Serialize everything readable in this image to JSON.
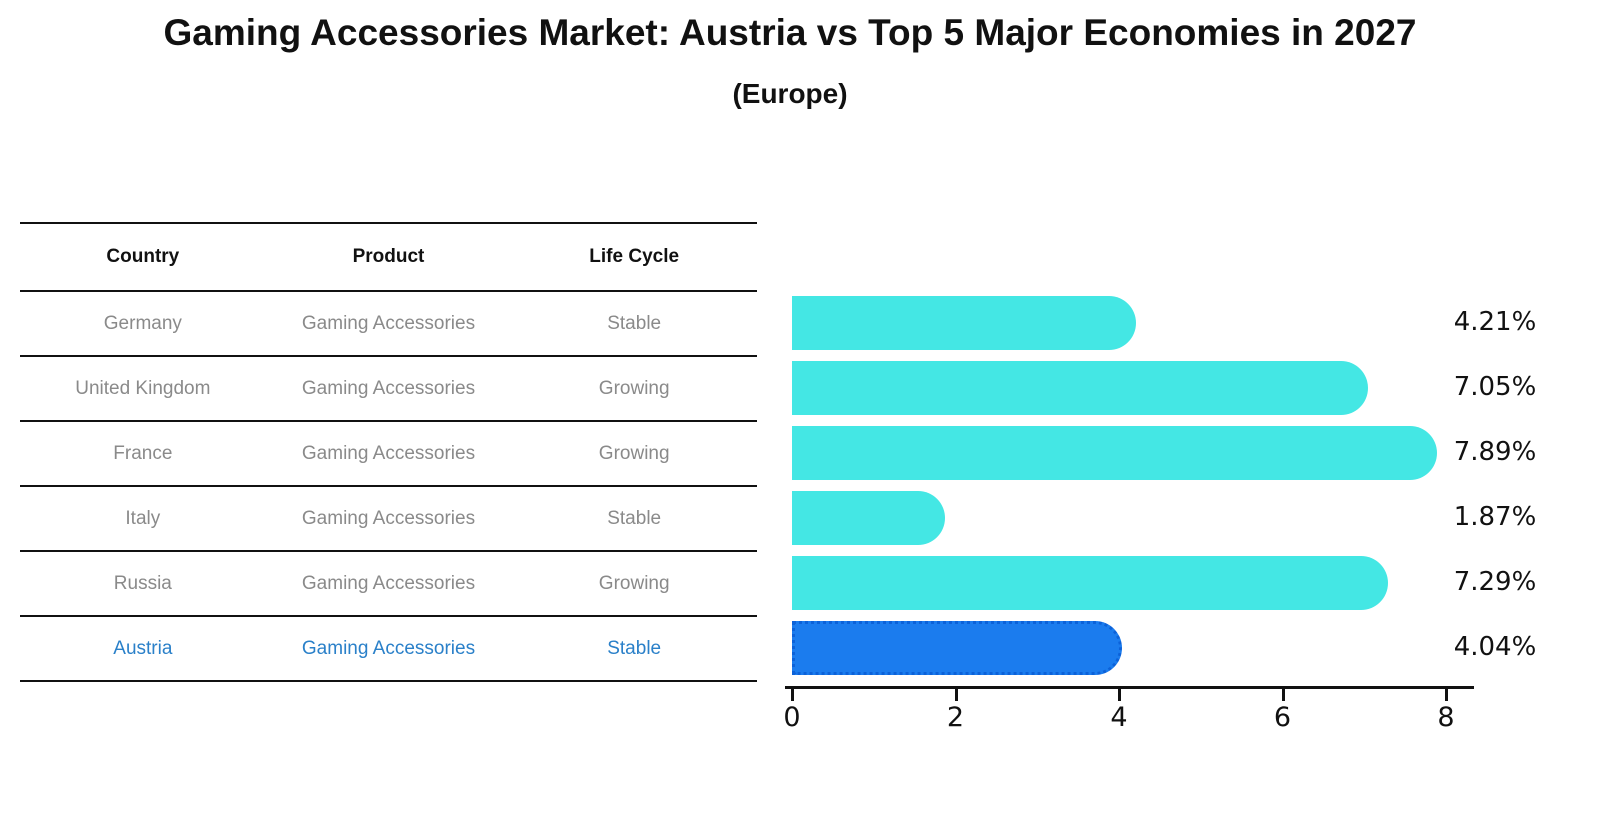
{
  "title": "Gaming Accessories Market: Austria vs Top 5 Major Economies in 2027",
  "subtitle": "(Europe)",
  "table": {
    "headers": [
      "Country",
      "Product",
      "Life Cycle"
    ],
    "rows": [
      {
        "country": "Germany",
        "product": "Gaming Accessories",
        "life_cycle": "Stable",
        "highlight": false
      },
      {
        "country": "United Kingdom",
        "product": "Gaming Accessories",
        "life_cycle": "Growing",
        "highlight": false
      },
      {
        "country": "France",
        "product": "Gaming Accessories",
        "life_cycle": "Growing",
        "highlight": false
      },
      {
        "country": "Italy",
        "product": "Gaming Accessories",
        "life_cycle": "Stable",
        "highlight": false
      },
      {
        "country": "Russia",
        "product": "Gaming Accessories",
        "life_cycle": "Growing",
        "highlight": true
      }
    ],
    "highlight_row": {
      "country": "Austria",
      "product": "Gaming Accessories",
      "life_cycle": "Stable"
    }
  },
  "chart_data": {
    "type": "bar",
    "orientation": "horizontal",
    "title": "Gaming Accessories Market: Austria vs Top 5 Major Economies in 2027 (Europe)",
    "categories": [
      "Germany",
      "United Kingdom",
      "France",
      "Italy",
      "Russia",
      "Austria"
    ],
    "values": [
      4.21,
      7.05,
      7.89,
      1.87,
      7.29,
      4.04
    ],
    "value_labels": [
      "4.21%",
      "7.05%",
      "7.89%",
      "1.87%",
      "7.29%",
      "4.04%"
    ],
    "x_ticks": [
      0,
      2,
      4,
      6,
      8
    ],
    "xlim": [
      0,
      8.35
    ],
    "grid": false,
    "legend": false,
    "highlight_index": 5,
    "bar_color": "#44e7e4",
    "highlight_bar_color": "#1b7cee",
    "highlight_border_color": "#0c62d9",
    "highlight_text_color": "#2a80c9",
    "text_color": "#8a8a8a",
    "axis_color": "#111111"
  }
}
